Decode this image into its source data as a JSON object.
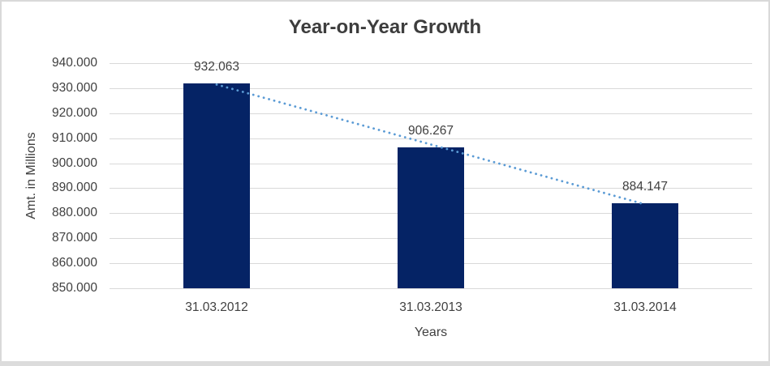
{
  "window": {
    "background": "#ffffff",
    "border_color": "#d9d9d9",
    "bottom_band_color": "#dcdcdc"
  },
  "chart_data": {
    "type": "bar",
    "title": "Year-on-Year Growth",
    "categories": [
      "31.03.2012",
      "31.03.2013",
      "31.03.2014"
    ],
    "values": [
      932.063,
      906.267,
      884.147
    ],
    "data_labels": [
      "932.063",
      "906.267",
      "884.147"
    ],
    "xlabel": "Years",
    "ylabel": "Amt. in Millions",
    "ylim": [
      850,
      940
    ],
    "ytick_step": 10,
    "ytick_labels": [
      "940.000",
      "930.000",
      "920.000",
      "910.000",
      "900.000",
      "890.000",
      "880.000",
      "870.000",
      "860.000",
      "850.000"
    ],
    "grid": true,
    "legend": "none",
    "colors": {
      "bar": "#052365",
      "trendline": "#5b9bd5",
      "gridline": "#d9d9d9",
      "text": "#404040",
      "title_text": "#3d3d3d"
    },
    "trendline": {
      "type": "linear",
      "style": "dotted"
    }
  }
}
